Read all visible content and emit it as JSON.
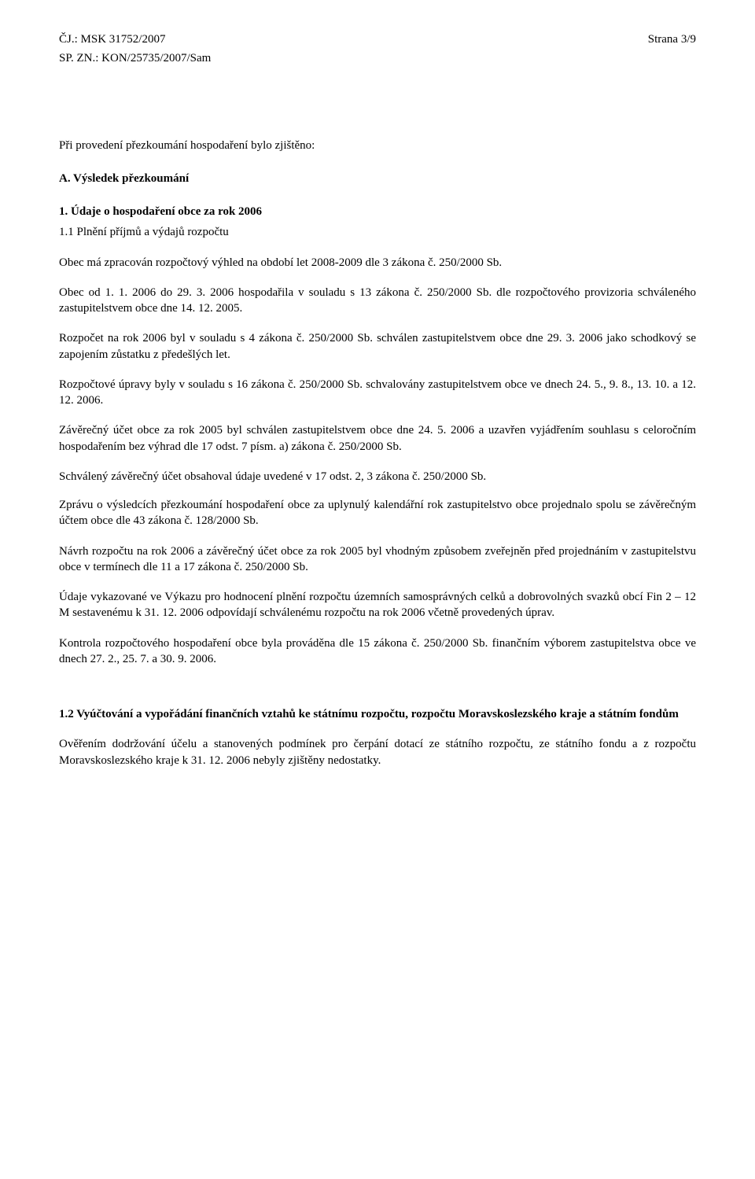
{
  "header": {
    "cj": "ČJ.: MSK 31752/2007",
    "spzn": "SP. ZN.: KON/25735/2007/Sam",
    "page": "Strana 3/9"
  },
  "intro": "Při provedení přezkoumání hospodaření bylo zjištěno:",
  "sectionA": "A. Výsledek přezkoumání",
  "sub1": "1.   Údaje o hospodaření obce za rok 2006",
  "sub11": "1.1 Plnění příjmů a výdajů rozpočtu",
  "p1": "Obec má zpracován rozpočtový výhled na období let 2008-2009 dle 3 zákona č. 250/2000 Sb.",
  "p2": "Obec od 1. 1. 2006 do 29. 3. 2006 hospodařila v souladu s 13 zákona č. 250/2000 Sb. dle rozpočtového provizoria schváleného zastupitelstvem obce dne 14. 12. 2005.",
  "p3": "Rozpočet na rok 2006 byl v souladu s 4 zákona č. 250/2000 Sb. schválen zastupitelstvem obce dne 29. 3. 2006 jako schodkový se zapojením zůstatku z předešlých let.",
  "p4": "Rozpočtové úpravy byly v souladu s 16 zákona č. 250/2000 Sb. schvalovány zastupitelstvem  obce ve dnech 24. 5., 9. 8., 13. 10. a 12. 12. 2006.",
  "p5": "Závěrečný účet obce za rok 2005 byl schválen zastupitelstvem obce dne 24. 5. 2006 a uzavřen vyjádřením souhlasu s celoročním hospodařením bez výhrad dle 17 odst. 7 písm. a) zákona č. 250/2000 Sb.",
  "p6": "Schválený závěrečný účet obsahoval údaje uvedené v 17 odst. 2, 3 zákona  č. 250/2000 Sb.",
  "p7": "Zprávu o výsledcích přezkoumání hospodaření obce za uplynulý kalendářní rok zastupitelstvo obce projednalo spolu se závěrečným účtem obce dle 43 zákona č. 128/2000 Sb.",
  "p8": "Návrh rozpočtu na rok 2006 a závěrečný účet obce za rok 2005 byl vhodným způsobem zveřejněn před projednáním v zastupitelstvu obce v termínech dle 11 a 17 zákona č. 250/2000 Sb.",
  "p9": "Údaje vykazované ve Výkazu pro hodnocení plnění rozpočtu územních  samosprávných celků a dobrovolných svazků obcí Fin 2 – 12 M sestavenému k 31. 12. 2006 odpovídají schválenému rozpočtu na rok 2006 včetně provedených úprav.",
  "p10": "Kontrola rozpočtového hospodaření obce byla prováděna dle 15 zákona č. 250/2000 Sb. finančním výborem zastupitelstva obce ve dnech 27. 2., 25. 7. a 30. 9. 2006.",
  "sub12": "1.2 Vyúčtování a vypořádání finančních vztahů ke státnímu rozpočtu, rozpočtu Moravskoslezského kraje a státním fondům",
  "p11": "Ověřením dodržování účelu a stanovených podmínek pro čerpání dotací ze státního rozpočtu, ze státního fondu a z rozpočtu Moravskoslezského kraje k 31. 12. 2006 nebyly zjištěny nedostatky."
}
